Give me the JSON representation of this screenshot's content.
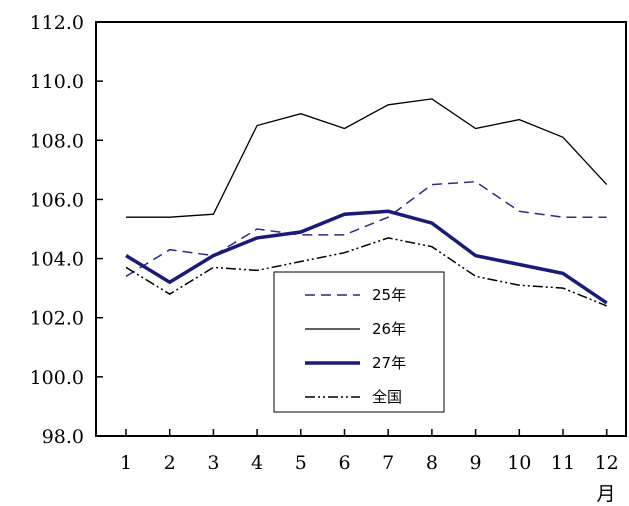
{
  "chart_data": {
    "type": "line",
    "categories": [
      "1",
      "2",
      "3",
      "4",
      "5",
      "6",
      "7",
      "8",
      "9",
      "10",
      "11",
      "12"
    ],
    "x_unit_label": "月",
    "ylim": [
      98.0,
      112.0
    ],
    "y_ticks": [
      "98.0",
      "100.0",
      "102.0",
      "104.0",
      "106.0",
      "108.0",
      "110.0",
      "112.0"
    ],
    "grid": false,
    "legend_position": "bottom-center",
    "series": [
      {
        "name": "25年",
        "style": "dashed",
        "color": "#2b2b8c",
        "values": [
          103.4,
          104.3,
          104.1,
          105.0,
          104.8,
          104.8,
          105.4,
          106.5,
          106.6,
          105.6,
          105.4,
          105.4
        ]
      },
      {
        "name": "26年",
        "style": "solid-thin",
        "color": "#000000",
        "values": [
          105.4,
          105.4,
          105.5,
          108.5,
          108.9,
          108.4,
          109.2,
          109.4,
          108.4,
          108.7,
          108.1,
          106.5
        ]
      },
      {
        "name": "27年",
        "style": "solid-thick",
        "color": "#1a1a78",
        "values": [
          104.1,
          103.2,
          104.1,
          104.7,
          104.9,
          105.5,
          105.6,
          105.2,
          104.1,
          103.8,
          103.5,
          102.5
        ]
      },
      {
        "name": "全国",
        "style": "dash-dot-dot",
        "color": "#000000",
        "values": [
          103.7,
          102.8,
          103.7,
          103.6,
          103.9,
          104.2,
          104.7,
          104.4,
          103.4,
          103.1,
          103.0,
          102.4
        ]
      }
    ]
  }
}
